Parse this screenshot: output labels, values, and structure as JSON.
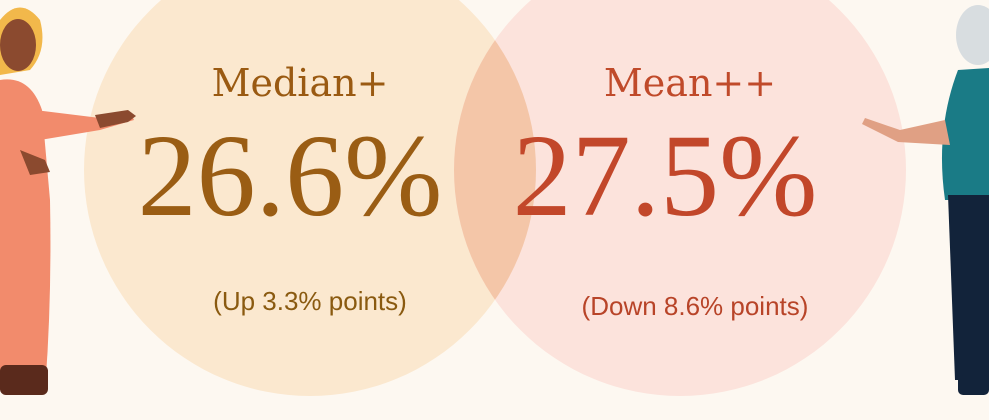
{
  "stats": [
    {
      "label": "Median+",
      "value": "26.6%",
      "change": "(Up 3.3% points)"
    },
    {
      "label": "Mean++",
      "value": "27.5%",
      "change": "(Down 8.6% points)"
    }
  ]
}
